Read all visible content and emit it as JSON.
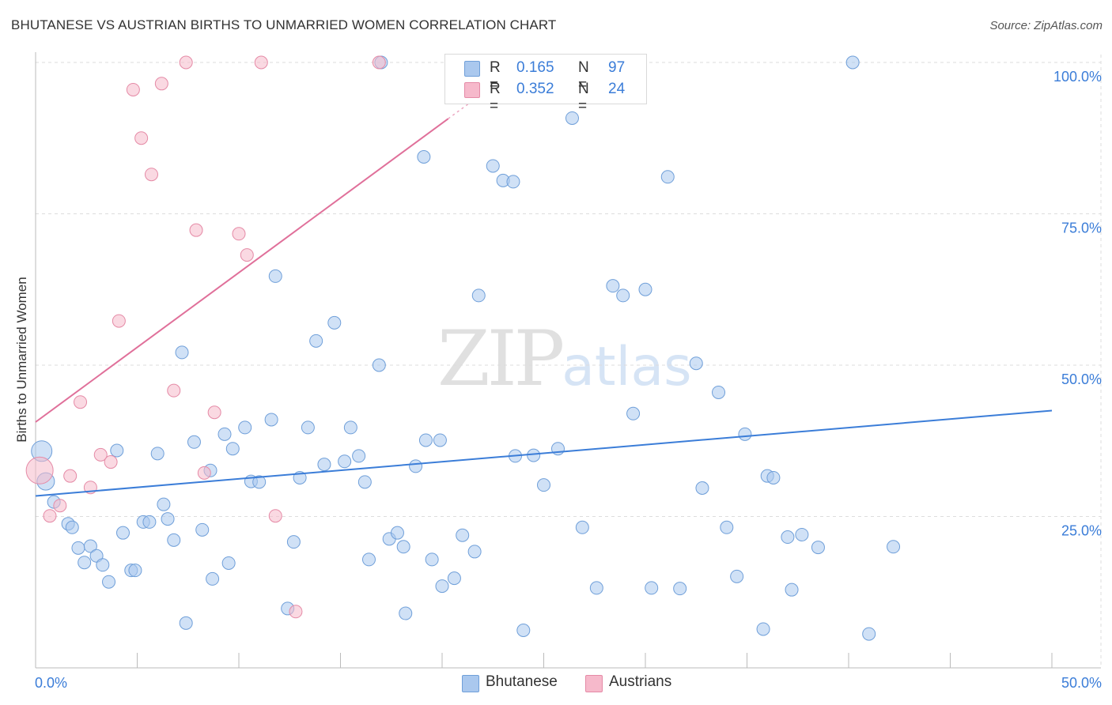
{
  "header": {
    "title": "BHUTANESE VS AUSTRIAN BIRTHS TO UNMARRIED WOMEN CORRELATION CHART",
    "source": "Source: ZipAtlas.com"
  },
  "watermark": {
    "part1": "ZIP",
    "part2": "atlas"
  },
  "legend": {
    "r_label": "R =",
    "n_label": "N =",
    "series": [
      {
        "name": "Bhutanese",
        "r": "0.165",
        "n": "97",
        "fill": "#aac8ee",
        "stroke": "#6f9fd9"
      },
      {
        "name": "Austrians",
        "r": "0.352",
        "n": "24",
        "fill": "#f6b9cb",
        "stroke": "#e58aa6"
      }
    ]
  },
  "chart_data": {
    "type": "scatter",
    "title": "BHUTANESE VS AUSTRIAN BIRTHS TO UNMARRIED WOMEN CORRELATION CHART",
    "xlabel": "",
    "ylabel": "Births to Unmarried Women",
    "xlim": [
      0,
      50
    ],
    "ylim": [
      0,
      100
    ],
    "x_tick_labels": [
      "0.0%",
      "50.0%"
    ],
    "y_tick_labels": [
      "25.0%",
      "50.0%",
      "75.0%",
      "100.0%"
    ],
    "y_ticks": [
      25,
      50,
      75,
      100
    ],
    "grid": true,
    "series": [
      {
        "name": "Bhutanese",
        "color": "#3b7dd8",
        "trendline": {
          "x": [
            0,
            50
          ],
          "y": [
            28.4,
            42.5
          ]
        },
        "points": [
          [
            0.3,
            35.8
          ],
          [
            0.5,
            30.8
          ],
          [
            0.9,
            27.4
          ],
          [
            1.6,
            23.8
          ],
          [
            1.8,
            23.2
          ],
          [
            2.1,
            19.8
          ],
          [
            2.4,
            17.4
          ],
          [
            2.7,
            20.1
          ],
          [
            3.0,
            18.5
          ],
          [
            3.3,
            17.0
          ],
          [
            3.6,
            14.2
          ],
          [
            4.0,
            35.9
          ],
          [
            4.3,
            22.3
          ],
          [
            4.7,
            16.1
          ],
          [
            4.9,
            16.1
          ],
          [
            5.3,
            24.1
          ],
          [
            5.6,
            24.1
          ],
          [
            6.0,
            35.4
          ],
          [
            6.3,
            27.0
          ],
          [
            6.5,
            24.6
          ],
          [
            6.8,
            21.1
          ],
          [
            7.2,
            52.1
          ],
          [
            7.4,
            7.4
          ],
          [
            7.8,
            37.3
          ],
          [
            8.2,
            22.8
          ],
          [
            8.6,
            32.6
          ],
          [
            8.7,
            14.7
          ],
          [
            9.3,
            38.6
          ],
          [
            9.5,
            17.3
          ],
          [
            9.7,
            36.2
          ],
          [
            10.3,
            39.7
          ],
          [
            10.6,
            30.8
          ],
          [
            11.0,
            30.7
          ],
          [
            11.6,
            41.0
          ],
          [
            11.8,
            64.7
          ],
          [
            12.4,
            9.8
          ],
          [
            12.7,
            20.8
          ],
          [
            13.0,
            31.4
          ],
          [
            13.4,
            39.7
          ],
          [
            13.8,
            54.0
          ],
          [
            14.2,
            33.6
          ],
          [
            14.7,
            57.0
          ],
          [
            15.2,
            34.1
          ],
          [
            15.5,
            39.7
          ],
          [
            15.9,
            35.0
          ],
          [
            16.2,
            30.7
          ],
          [
            16.4,
            17.9
          ],
          [
            16.9,
            50.0
          ],
          [
            17.0,
            100.0
          ],
          [
            17.4,
            21.3
          ],
          [
            17.8,
            22.3
          ],
          [
            18.1,
            20.0
          ],
          [
            18.2,
            9.0
          ],
          [
            18.7,
            33.3
          ],
          [
            19.1,
            84.4
          ],
          [
            19.2,
            37.6
          ],
          [
            19.5,
            17.9
          ],
          [
            19.9,
            37.6
          ],
          [
            20.0,
            13.5
          ],
          [
            20.6,
            14.8
          ],
          [
            21.0,
            21.9
          ],
          [
            21.6,
            19.2
          ],
          [
            21.8,
            61.5
          ],
          [
            22.5,
            82.9
          ],
          [
            23.0,
            80.5
          ],
          [
            23.5,
            80.3
          ],
          [
            23.6,
            35.0
          ],
          [
            24.0,
            6.2
          ],
          [
            24.5,
            35.1
          ],
          [
            25.0,
            30.2
          ],
          [
            25.7,
            36.2
          ],
          [
            26.4,
            90.8
          ],
          [
            26.9,
            23.2
          ],
          [
            27.6,
            13.2
          ],
          [
            28.4,
            63.1
          ],
          [
            28.9,
            61.5
          ],
          [
            29.4,
            42.0
          ],
          [
            30.0,
            62.5
          ],
          [
            30.3,
            13.2
          ],
          [
            31.1,
            81.1
          ],
          [
            31.7,
            13.1
          ],
          [
            32.5,
            50.3
          ],
          [
            32.8,
            29.7
          ],
          [
            33.6,
            45.5
          ],
          [
            34.0,
            23.2
          ],
          [
            34.5,
            15.1
          ],
          [
            34.9,
            38.6
          ],
          [
            35.8,
            6.4
          ],
          [
            36.0,
            31.7
          ],
          [
            36.3,
            31.4
          ],
          [
            37.0,
            21.6
          ],
          [
            37.2,
            12.9
          ],
          [
            37.7,
            22.0
          ],
          [
            38.5,
            19.9
          ],
          [
            40.2,
            100.0
          ],
          [
            41.0,
            5.6
          ],
          [
            42.2,
            20.0
          ]
        ]
      },
      {
        "name": "Austrians",
        "color": "#e0709a",
        "trendline": {
          "x": [
            0,
            20.5
          ],
          "y": [
            40.6,
            91.2
          ]
        },
        "points": [
          [
            0.2,
            32.6
          ],
          [
            0.7,
            25.1
          ],
          [
            1.2,
            26.8
          ],
          [
            1.7,
            31.7
          ],
          [
            2.2,
            43.9
          ],
          [
            2.7,
            29.8
          ],
          [
            3.2,
            35.2
          ],
          [
            3.7,
            34.0
          ],
          [
            4.1,
            57.3
          ],
          [
            4.8,
            95.5
          ],
          [
            5.2,
            87.5
          ],
          [
            5.7,
            81.5
          ],
          [
            6.2,
            96.5
          ],
          [
            6.8,
            45.8
          ],
          [
            7.4,
            100.0
          ],
          [
            7.9,
            72.3
          ],
          [
            8.3,
            32.2
          ],
          [
            8.8,
            42.2
          ],
          [
            10.0,
            71.7
          ],
          [
            10.4,
            68.2
          ],
          [
            11.1,
            100.0
          ],
          [
            11.8,
            25.1
          ],
          [
            12.8,
            9.3
          ],
          [
            16.9,
            100.0
          ]
        ]
      }
    ]
  }
}
